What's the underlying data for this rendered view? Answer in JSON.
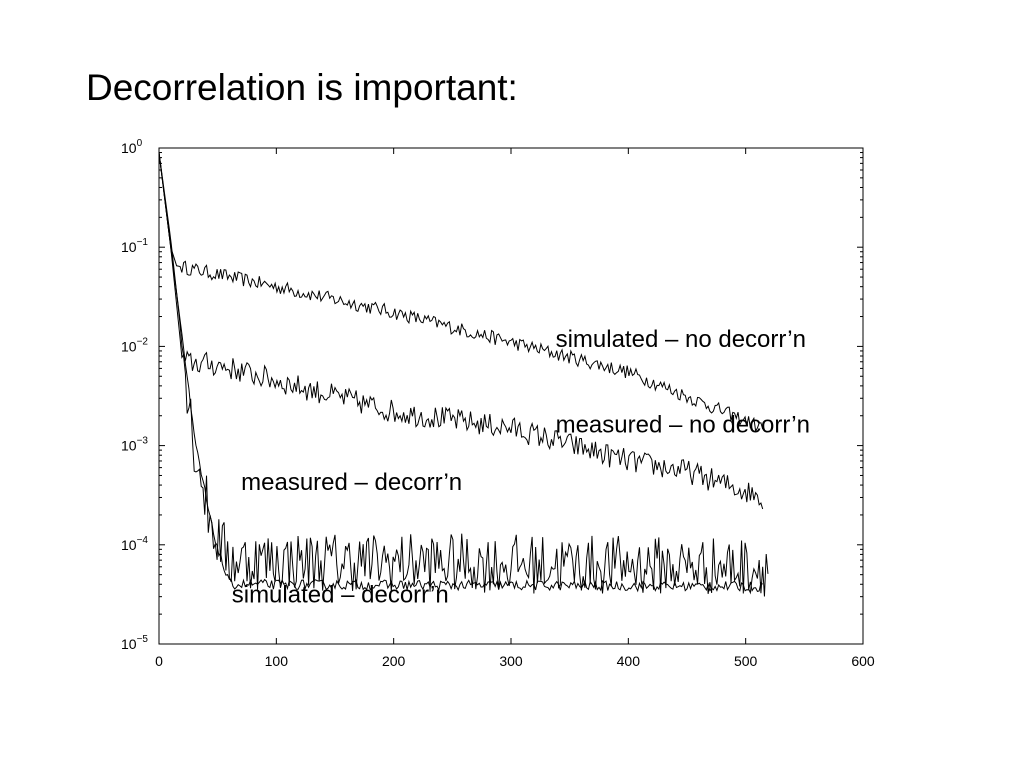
{
  "slide": {
    "title": "Decorrelation is important:"
  },
  "chart_data": {
    "type": "line",
    "title": "",
    "xlabel": "",
    "ylabel": "",
    "xlim": [
      0,
      600
    ],
    "ylim": [
      1e-05,
      1
    ],
    "yscale": "log",
    "grid": false,
    "x_ticks": [
      0,
      100,
      200,
      300,
      400,
      500,
      600
    ],
    "y_ticks": [
      {
        "value": 1,
        "base": "10",
        "exp": "0"
      },
      {
        "value": 0.1,
        "base": "10",
        "exp": "−1"
      },
      {
        "value": 0.01,
        "base": "10",
        "exp": "−2"
      },
      {
        "value": 0.001,
        "base": "10",
        "exp": "−3"
      },
      {
        "value": 0.0001,
        "base": "10",
        "exp": "−4"
      },
      {
        "value": 1e-05,
        "base": "10",
        "exp": "−5"
      }
    ],
    "series": [
      {
        "name": "simulated – no decorr’n",
        "noise": 0.07,
        "points": [
          [
            0,
            0.9
          ],
          [
            5,
            0.3
          ],
          [
            10,
            0.1
          ],
          [
            15,
            0.065
          ],
          [
            100,
            0.04
          ],
          [
            200,
            0.022
          ],
          [
            300,
            0.011
          ],
          [
            400,
            0.0055
          ],
          [
            515,
            0.0015
          ]
        ]
      },
      {
        "name": "measured – no decorr’n",
        "noise": 0.12,
        "points": [
          [
            0,
            0.9
          ],
          [
            10,
            0.1
          ],
          [
            20,
            0.007
          ],
          [
            50,
            0.0065
          ],
          [
            100,
            0.0045
          ],
          [
            200,
            0.0022
          ],
          [
            300,
            0.0015
          ],
          [
            400,
            0.0007
          ],
          [
            450,
            0.00055
          ],
          [
            515,
            0.0003
          ]
        ]
      },
      {
        "name": "measured – decorr’n",
        "noise": 0.3,
        "points": [
          [
            0,
            0.9
          ],
          [
            10,
            0.12
          ],
          [
            20,
            0.01
          ],
          [
            30,
            0.001
          ],
          [
            45,
            0.00015
          ],
          [
            60,
            7e-05
          ],
          [
            520,
            6e-05
          ]
        ]
      },
      {
        "name": "simulated – decorr’n",
        "noise": 0.05,
        "points": [
          [
            0,
            0.9
          ],
          [
            10,
            0.1
          ],
          [
            20,
            0.012
          ],
          [
            30,
            0.0012
          ],
          [
            45,
            0.00015
          ],
          [
            55,
            6e-05
          ],
          [
            60,
            4e-05
          ],
          [
            515,
            3.8e-05
          ]
        ]
      }
    ],
    "annotations": [
      {
        "text": "simulated – no decorr’n",
        "x": 338,
        "y": 0.0099
      },
      {
        "text": "measured – no decorr’n",
        "x": 338,
        "y": 0.00135
      },
      {
        "text": "measured – decorr’n",
        "x": 70,
        "y": 0.000355
      },
      {
        "text": "simulated – decorr’n",
        "x": 62,
        "y": 2.62e-05
      }
    ]
  }
}
